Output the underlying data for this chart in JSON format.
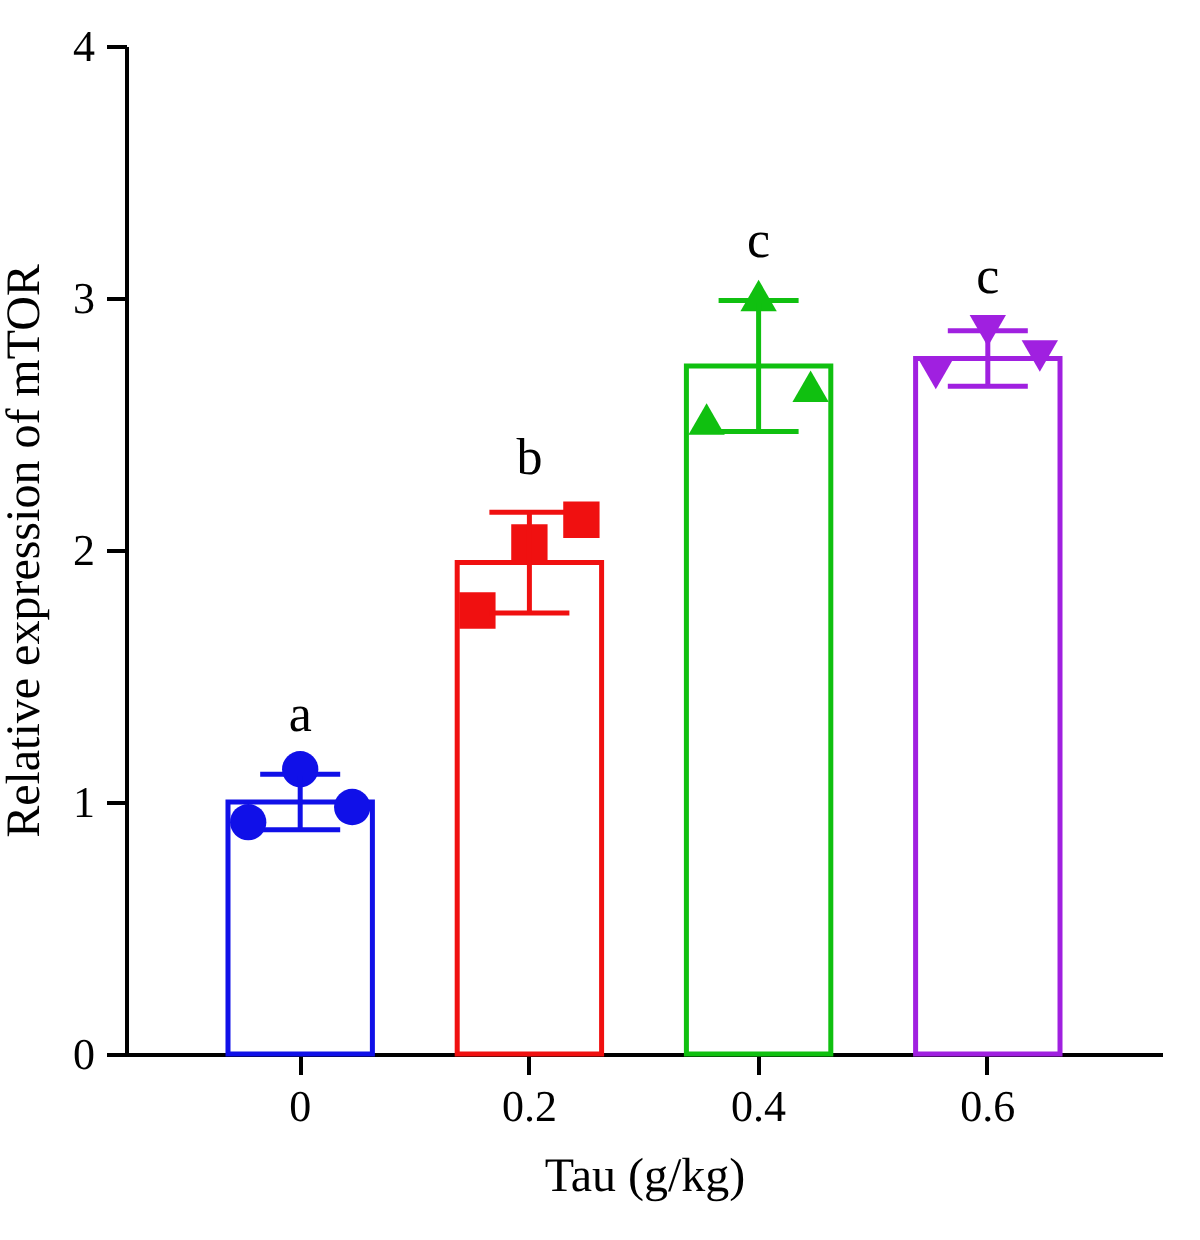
{
  "chart_data": {
    "type": "bar",
    "xlabel": "Tau (g/kg)",
    "ylabel": "Relative expression of mTOR",
    "categories": [
      "0",
      "0.2",
      "0.4",
      "0.6"
    ],
    "series": [
      {
        "colors": [
          "#1010e8",
          "#f01010",
          "#10c010",
          "#a020e0"
        ],
        "values": [
          1.0,
          1.95,
          2.73,
          2.76
        ],
        "errors": [
          0.11,
          0.2,
          0.26,
          0.11
        ]
      },
      {
        "type": "scatter",
        "color": "#1010e8",
        "marker": "circle",
        "x": [
          "0",
          "0",
          "0"
        ],
        "values": [
          0.92,
          1.13,
          0.98
        ]
      },
      {
        "type": "scatter",
        "color": "#f01010",
        "marker": "square",
        "x": [
          "0.2",
          "0.2",
          "0.2"
        ],
        "values": [
          1.76,
          2.03,
          2.12
        ]
      },
      {
        "type": "scatter",
        "color": "#10c010",
        "marker": "triangle",
        "x": [
          "0.4",
          "0.4",
          "0.4"
        ],
        "values": [
          2.52,
          3.01,
          2.65
        ]
      },
      {
        "type": "scatter",
        "color": "#a020e0",
        "marker": "triangle-down",
        "x": [
          "0.6",
          "0.6",
          "0.6"
        ],
        "values": [
          2.7,
          2.87,
          2.77
        ]
      }
    ],
    "annotations": [
      "a",
      "b",
      "c",
      "c"
    ],
    "ylim": [
      0,
      4
    ],
    "yticks": [
      0,
      1,
      2,
      3,
      4
    ]
  }
}
